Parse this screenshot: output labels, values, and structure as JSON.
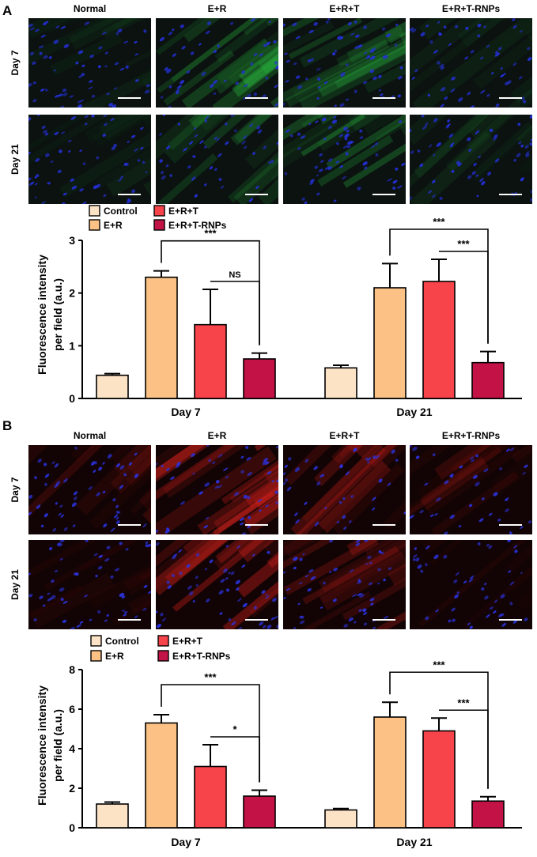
{
  "panels": [
    {
      "letter": "A",
      "columns": [
        "Normal",
        "E+R",
        "E+R+T",
        "E+R+T-RNPs"
      ],
      "rows": [
        "Day 7",
        "Day 21"
      ],
      "stain_colors": {
        "background": "#0b1210",
        "signal": "#2fd447",
        "nuclei": "#2430d8"
      },
      "brightness": [
        [
          0.15,
          0.75,
          0.45,
          0.2
        ],
        [
          0.2,
          0.5,
          0.6,
          0.2
        ]
      ]
    },
    {
      "letter": "B",
      "columns": [
        "Normal",
        "E+R",
        "E+R+T",
        "E+R+T-RNPs"
      ],
      "rows": [
        "Day 7",
        "Day 21"
      ],
      "stain_colors": {
        "background": "#120404",
        "signal": "#e0221e",
        "nuclei": "#2b33e0"
      },
      "brightness": [
        [
          0.4,
          0.9,
          0.6,
          0.35
        ],
        [
          0.15,
          0.85,
          0.6,
          0.12
        ]
      ]
    }
  ],
  "chart_data": [
    {
      "type": "bar",
      "title": "",
      "xlabel": "",
      "ylabel": "Fluorescence intensity per field (a.u.)",
      "ylim": [
        0,
        3
      ],
      "yticks": [
        0,
        1,
        2,
        3
      ],
      "categories": [
        "Day 7",
        "Day 21"
      ],
      "legend": {
        "position": "top-left"
      },
      "series": [
        {
          "name": "Control",
          "color": "#fde3c6",
          "values": [
            0.44,
            0.58
          ],
          "errors": [
            0.03,
            0.05
          ]
        },
        {
          "name": "E+R",
          "color": "#fbc185",
          "values": [
            2.3,
            2.1
          ],
          "errors": [
            0.12,
            0.46
          ]
        },
        {
          "name": "E+R+T",
          "color": "#f7434a",
          "values": [
            1.4,
            2.22
          ],
          "errors": [
            0.67,
            0.42
          ]
        },
        {
          "name": "E+R+T-RNPs",
          "color": "#c31245",
          "values": [
            0.75,
            0.68
          ],
          "errors": [
            0.11,
            0.21
          ]
        }
      ],
      "significance": [
        {
          "category": 0,
          "from": 1,
          "to": 3,
          "label": "***"
        },
        {
          "category": 0,
          "from": 2,
          "to": 3,
          "label": "NS"
        },
        {
          "category": 1,
          "from": 1,
          "to": 3,
          "label": "***"
        },
        {
          "category": 1,
          "from": 2,
          "to": 3,
          "label": "***"
        }
      ]
    },
    {
      "type": "bar",
      "title": "",
      "xlabel": "",
      "ylabel": "Fluorescence intensity per field (a.u.)",
      "ylim": [
        0,
        8
      ],
      "yticks": [
        0,
        2,
        4,
        6,
        8
      ],
      "categories": [
        "Day 7",
        "Day 21"
      ],
      "legend": {
        "position": "top-left"
      },
      "series": [
        {
          "name": "Control",
          "color": "#fde3c6",
          "values": [
            1.2,
            0.9
          ],
          "errors": [
            0.1,
            0.07
          ]
        },
        {
          "name": "E+R",
          "color": "#fbc185",
          "values": [
            5.3,
            5.6
          ],
          "errors": [
            0.42,
            0.75
          ]
        },
        {
          "name": "E+R+T",
          "color": "#f7434a",
          "values": [
            3.1,
            4.9
          ],
          "errors": [
            1.1,
            0.65
          ]
        },
        {
          "name": "E+R+T-RNPs",
          "color": "#c31245",
          "values": [
            1.6,
            1.35
          ],
          "errors": [
            0.3,
            0.22
          ]
        }
      ],
      "significance": [
        {
          "category": 0,
          "from": 1,
          "to": 3,
          "label": "***"
        },
        {
          "category": 0,
          "from": 2,
          "to": 3,
          "label": "*"
        },
        {
          "category": 1,
          "from": 1,
          "to": 3,
          "label": "***"
        },
        {
          "category": 1,
          "from": 2,
          "to": 3,
          "label": "***"
        }
      ]
    }
  ]
}
